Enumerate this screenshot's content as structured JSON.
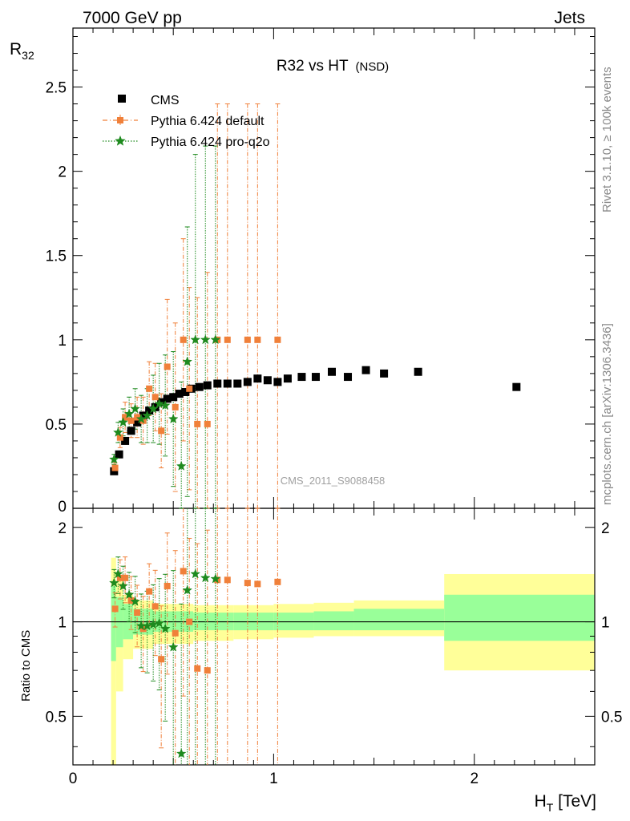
{
  "header": {
    "left": "7000 GeV pp",
    "right": "Jets"
  },
  "plot_title": {
    "main": "R32 vs HT",
    "suffix": "(NSD)"
  },
  "side_text": {
    "rivet": "Rivet 3.1.10, ≥ 100k events",
    "mcplots": "mcplots.cern.ch [arXiv:1306.3436]"
  },
  "watermark": "CMS_2011_S9088458",
  "axes": {
    "ylabel_main": "R",
    "ylabel_main_sub": "32",
    "ylabel_ratio": "Ratio to CMS",
    "xlabel": "H",
    "xlabel_sub": "T",
    "xlabel_unit": " [TeV]"
  },
  "colors": {
    "cms": "#000000",
    "pythia_default": "#f0803a",
    "pythia_proq2o": "#1e8a1e",
    "band_inner": "#99ff99",
    "band_outer": "#ffff99"
  },
  "legend": [
    {
      "label": "CMS"
    },
    {
      "label": "Pythia 6.424 default"
    },
    {
      "label": "Pythia 6.424 pro-q2o"
    }
  ],
  "chart_data": [
    {
      "type": "scatter",
      "panel": "main",
      "xlim": [
        0,
        2.6
      ],
      "ylim": [
        0,
        2.85
      ],
      "yticks": [
        0.5,
        1,
        1.5,
        2,
        2.5
      ],
      "ytick_labels": [
        "0.5",
        "1",
        "1.5",
        "2",
        "2.5"
      ],
      "ylabel": "R32",
      "series": [
        {
          "name": "CMS",
          "marker": "square",
          "x": [
            0.205,
            0.23,
            0.26,
            0.29,
            0.32,
            0.35,
            0.38,
            0.41,
            0.44,
            0.47,
            0.5,
            0.53,
            0.56,
            0.59,
            0.63,
            0.67,
            0.72,
            0.77,
            0.82,
            0.87,
            0.92,
            0.97,
            1.02,
            1.07,
            1.14,
            1.21,
            1.29,
            1.37,
            1.46,
            1.55,
            1.72,
            2.21
          ],
          "y": [
            0.22,
            0.32,
            0.4,
            0.46,
            0.51,
            0.55,
            0.58,
            0.6,
            0.63,
            0.65,
            0.66,
            0.68,
            0.69,
            0.71,
            0.72,
            0.73,
            0.74,
            0.74,
            0.74,
            0.75,
            0.77,
            0.76,
            0.75,
            0.77,
            0.78,
            0.78,
            0.81,
            0.78,
            0.82,
            0.8,
            0.81,
            0.72
          ]
        },
        {
          "name": "Pythia 6.424 default",
          "marker": "square",
          "x": [
            0.21,
            0.235,
            0.26,
            0.29,
            0.32,
            0.35,
            0.38,
            0.41,
            0.44,
            0.47,
            0.51,
            0.55,
            0.58,
            0.62,
            0.67,
            0.72,
            0.77,
            0.87,
            0.92,
            1.02
          ],
          "y": [
            0.24,
            0.42,
            0.54,
            0.52,
            0.54,
            0.52,
            0.71,
            0.66,
            0.46,
            0.84,
            0.6,
            1.0,
            0.71,
            0.5,
            0.5,
            1.0,
            1.0,
            1.0,
            1.0,
            1.0
          ],
          "err": [
            0.03,
            0.06,
            0.09,
            0.1,
            0.12,
            0.14,
            0.16,
            0.2,
            0.22,
            0.4,
            0.5,
            0.6,
            0.6,
            0.75,
            0.9,
            1.4,
            1.4,
            1.4,
            1.4,
            1.4
          ]
        },
        {
          "name": "Pythia 6.424 pro-q2o",
          "marker": "star",
          "x": [
            0.205,
            0.225,
            0.25,
            0.28,
            0.31,
            0.34,
            0.37,
            0.4,
            0.43,
            0.46,
            0.5,
            0.54,
            0.57,
            0.61,
            0.66,
            0.71
          ],
          "y": [
            0.29,
            0.45,
            0.51,
            0.56,
            0.59,
            0.53,
            0.55,
            0.59,
            0.62,
            0.61,
            0.53,
            0.25,
            0.87,
            1.0,
            1.0,
            1.0
          ],
          "err": [
            0.03,
            0.06,
            0.08,
            0.1,
            0.12,
            0.14,
            0.16,
            0.2,
            0.24,
            0.3,
            0.4,
            0.5,
            0.8,
            1.1,
            1.15,
            1.15
          ]
        }
      ]
    },
    {
      "type": "scatter",
      "panel": "ratio",
      "xlim": [
        0,
        2.6
      ],
      "ylim": [
        0.35,
        2.3
      ],
      "yticks": [
        0.5,
        1,
        2
      ],
      "ytick_labels": [
        "0.5",
        "1",
        "2"
      ],
      "xticks": [
        0,
        1,
        2
      ],
      "xtick_labels": [
        "0",
        "1",
        "2"
      ],
      "ylabel": "Ratio to CMS",
      "xlabel": "HT [TeV]",
      "reference_line": 1,
      "band_bins": [
        [
          0.19,
          0.215,
          0.75,
          1.3,
          0.2,
          1.6
        ],
        [
          0.215,
          0.25,
          0.83,
          1.2,
          0.6,
          1.35
        ],
        [
          0.25,
          0.3,
          0.88,
          1.14,
          0.76,
          1.22
        ],
        [
          0.3,
          0.4,
          0.91,
          1.1,
          0.82,
          1.17
        ],
        [
          0.4,
          0.6,
          0.93,
          1.08,
          0.85,
          1.14
        ],
        [
          0.6,
          0.8,
          0.94,
          1.07,
          0.87,
          1.13
        ],
        [
          0.8,
          1.0,
          0.94,
          1.07,
          0.88,
          1.13
        ],
        [
          1.0,
          1.2,
          0.94,
          1.07,
          0.89,
          1.14
        ],
        [
          1.2,
          1.4,
          0.94,
          1.08,
          0.9,
          1.15
        ],
        [
          1.4,
          1.85,
          0.94,
          1.1,
          0.9,
          1.17
        ],
        [
          1.85,
          2.6,
          0.87,
          1.22,
          0.7,
          1.42
        ]
      ],
      "series": [
        {
          "name": "Pythia 6.424 default",
          "x": [
            0.21,
            0.235,
            0.26,
            0.29,
            0.32,
            0.35,
            0.38,
            0.41,
            0.44,
            0.47,
            0.51,
            0.55,
            0.58,
            0.62,
            0.67,
            0.72,
            0.77,
            0.87,
            0.92,
            1.02
          ],
          "y": [
            1.1,
            1.38,
            1.38,
            1.17,
            1.07,
            0.95,
            1.25,
            1.12,
            0.76,
            1.3,
            0.92,
            1.45,
            1.0,
            0.71,
            0.7,
            1.36,
            1.36,
            1.33,
            1.32,
            1.34
          ]
        },
        {
          "name": "Pythia 6.424 pro-q2o",
          "x": [
            0.205,
            0.225,
            0.25,
            0.28,
            0.31,
            0.34,
            0.37,
            0.4,
            0.43,
            0.46,
            0.5,
            0.54,
            0.57,
            0.61,
            0.66,
            0.71
          ],
          "y": [
            1.33,
            1.42,
            1.3,
            1.22,
            1.16,
            0.97,
            0.97,
            0.98,
            0.99,
            0.95,
            0.83,
            0.38,
            1.26,
            1.42,
            1.38,
            1.37
          ]
        }
      ]
    }
  ]
}
